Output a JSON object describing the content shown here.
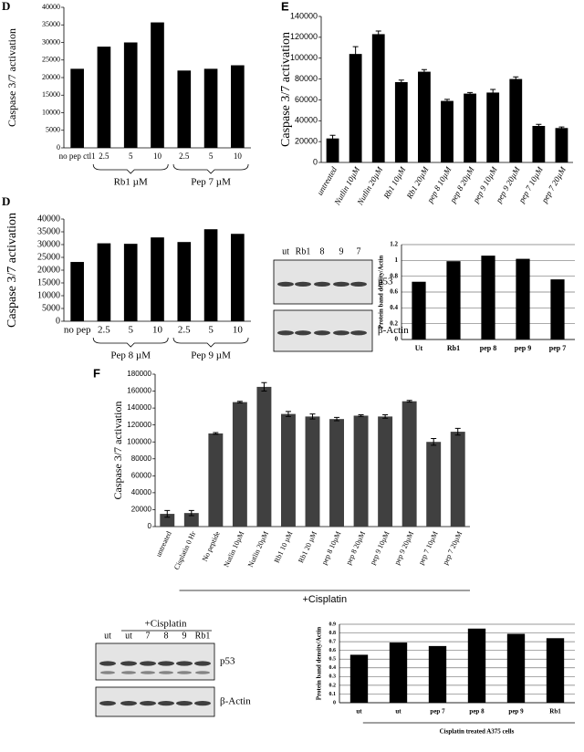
{
  "chart_data": [
    {
      "type": "bar",
      "panel_label": "D",
      "y_label": "Caspase 3/7 activation",
      "categories": [
        "no pep ctl1",
        "2.5",
        "5",
        "10",
        "2.5",
        "5",
        "10"
      ],
      "group_labels": [
        "Rb1 µM",
        "Pep 7 µM"
      ],
      "values": [
        22500,
        28800,
        30000,
        35700,
        22000,
        22500,
        23500
      ],
      "color": "#000000",
      "ylim": [
        0,
        40000
      ],
      "yticks": [
        0,
        5000,
        10000,
        15000,
        20000,
        25000,
        30000,
        35000,
        40000
      ],
      "grid": false
    },
    {
      "type": "bar",
      "panel_label": "D",
      "y_label": "Caspase 3/7 activation",
      "categories": [
        "no pep",
        "2.5",
        "5",
        "10",
        "2.5",
        "5",
        "10"
      ],
      "group_labels": [
        "Pep 8 µM",
        "Pep 9 µM"
      ],
      "values": [
        23200,
        30500,
        30300,
        32800,
        31000,
        36000,
        34200
      ],
      "color": "#000000",
      "ylim": [
        0,
        40000
      ],
      "yticks": [
        0,
        5000,
        10000,
        15000,
        20000,
        25000,
        30000,
        35000,
        40000
      ],
      "grid": false
    },
    {
      "type": "bar",
      "panel_label": "E",
      "y_label": "Caspase 3/7 activation",
      "categories": [
        "untreated",
        "Nutlin 10µM",
        "Nutlin 20µM",
        "Rb1 10µM",
        "Rb1 20µM",
        "pep 8 10µM",
        "pep 8 20µM",
        "pep 9 10µM",
        "pep 9 20µM",
        "pep 7 10µM",
        "pep 7 20µM"
      ],
      "values": [
        23000,
        104000,
        123000,
        77000,
        87000,
        59000,
        66000,
        67000,
        80000,
        35000,
        33000
      ],
      "errors": [
        3000,
        7000,
        3000,
        2000,
        2000,
        1500,
        1000,
        3000,
        2000,
        1500,
        1000
      ],
      "color": "#000000",
      "ylim": [
        0,
        140000
      ],
      "yticks": [
        0,
        20000,
        40000,
        60000,
        80000,
        100000,
        120000,
        140000
      ],
      "grid": false
    },
    {
      "type": "bar",
      "y_label": "Protein band density/Actin",
      "categories": [
        "Ut",
        "Rb1",
        "pep 8",
        "pep 9",
        "pep 7"
      ],
      "values": [
        0.73,
        0.99,
        1.06,
        1.02,
        0.76
      ],
      "color": "#000000",
      "ylim": [
        0,
        1.2
      ],
      "yticks": [
        0,
        0.2,
        0.4,
        0.6,
        0.8,
        1,
        1.2
      ],
      "grid": true
    },
    {
      "type": "bar",
      "panel_label": "F",
      "y_label": "Caspase 3/7 activation",
      "categories": [
        "untreated",
        "Cisplatin 0 Hr",
        "No peptide",
        "Nutlin 10µM",
        "Nutlin 20µM",
        "Rb1 10 µM",
        "Rb1 20 µM",
        "pep 8 10µM",
        "pep 8 20µM",
        "pep 9 10µM",
        "pep 9 20µM",
        "pep 7 10µM",
        "pep 7 20µM"
      ],
      "group_label": "+Cisplatin",
      "values": [
        15000,
        16000,
        110000,
        147000,
        165000,
        133000,
        130000,
        127000,
        131000,
        130000,
        148000,
        100000,
        112000
      ],
      "errors": [
        4000,
        3000,
        1000,
        1000,
        5000,
        3000,
        3000,
        2000,
        1000,
        2000,
        1000,
        4000,
        4000
      ],
      "color": "#404040",
      "ylim": [
        0,
        180000
      ],
      "yticks": [
        0,
        20000,
        40000,
        60000,
        80000,
        100000,
        120000,
        140000,
        160000,
        180000
      ],
      "grid": false
    },
    {
      "type": "bar",
      "y_label": "Protein band density/Actin",
      "x_label": "Cisplatin treated A375 cells",
      "categories": [
        "ut",
        "ut",
        "pep 7",
        "pep 8",
        "pep 9",
        "Rb1"
      ],
      "values": [
        0.55,
        0.69,
        0.65,
        0.85,
        0.79,
        0.74
      ],
      "color": "#000000",
      "ylim": [
        0,
        0.9
      ],
      "yticks": [
        0,
        0.1,
        0.2,
        0.3,
        0.4,
        0.5,
        0.6,
        0.7,
        0.8,
        0.9
      ],
      "grid": true
    }
  ],
  "blots": [
    {
      "lanes": [
        "ut",
        "Rb1",
        "8",
        "9",
        "7"
      ],
      "rows": [
        "p53",
        "β-Actin"
      ]
    },
    {
      "header": "+Cisplatin",
      "lanes": [
        "ut",
        "ut",
        "7",
        "8",
        "9",
        "Rb1"
      ],
      "rows": [
        "p53",
        "β-Actin"
      ]
    }
  ]
}
